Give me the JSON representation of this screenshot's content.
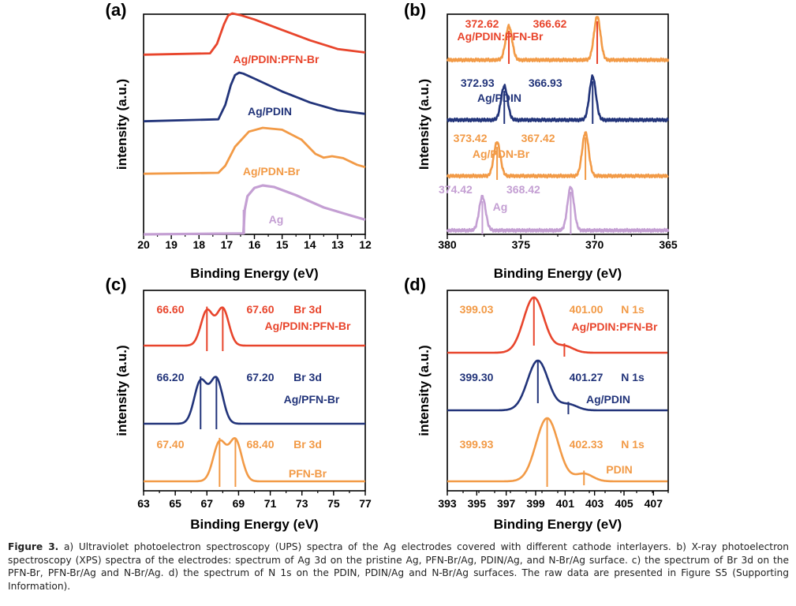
{
  "colors": {
    "red": "#e8452c",
    "navy": "#22347a",
    "orange": "#f29a46",
    "lilac": "#c49fd3",
    "axis": "#000000"
  },
  "chart_data": [
    {
      "panel": "(a)",
      "type": "line",
      "xlabel": "Binding Energy (eV)",
      "ylabel": "intensity (a.u.)",
      "xlim": [
        20,
        12
      ],
      "x_reversed": true,
      "xticks": [
        "20",
        "19",
        "18",
        "17",
        "16",
        "15",
        "14",
        "13",
        "12"
      ],
      "series": [
        {
          "name": "Ag/PDIN:PFN-Br",
          "color": "red",
          "label_pos": "center",
          "x": [
            20,
            17.6,
            17.35,
            17.1,
            16.95,
            16.8,
            16.5,
            16,
            15,
            14,
            13,
            12
          ],
          "y": [
            0.05,
            0.08,
            0.3,
            0.75,
            0.95,
            1.0,
            0.96,
            0.86,
            0.62,
            0.38,
            0.18,
            0.1
          ]
        },
        {
          "name": "Ag/PDIN",
          "color": "navy",
          "label_pos": "center",
          "x": [
            20,
            17.3,
            17.05,
            16.85,
            16.7,
            16.55,
            16.4,
            16,
            15,
            14,
            13,
            12
          ],
          "y": [
            0.02,
            0.06,
            0.35,
            0.75,
            0.95,
            1.0,
            0.98,
            0.88,
            0.62,
            0.4,
            0.24,
            0.17
          ]
        },
        {
          "name": "Ag/PDN-Br",
          "color": "orange",
          "label_pos": "center-right",
          "x": [
            20,
            17.3,
            17.05,
            16.7,
            16.2,
            15.7,
            15,
            14.3,
            13.8,
            13.5,
            13.2,
            12.8,
            12.3,
            12
          ],
          "y": [
            0.03,
            0.05,
            0.2,
            0.6,
            0.92,
            1.0,
            0.96,
            0.75,
            0.45,
            0.37,
            0.4,
            0.36,
            0.22,
            0.17
          ]
        },
        {
          "name": "Ag",
          "color": "lilac",
          "label_pos": "center",
          "x": [
            20,
            16.4,
            16.35,
            16.25,
            16,
            15.7,
            15.3,
            14.5,
            13.5,
            12.5,
            12
          ],
          "y": [
            0.0,
            0.02,
            0.5,
            0.78,
            0.95,
            1.0,
            0.97,
            0.8,
            0.55,
            0.38,
            0.3
          ]
        }
      ]
    },
    {
      "panel": "(b)",
      "type": "line",
      "xlabel": "Binding Energy (eV)",
      "ylabel": "Intensity (a.u.)",
      "xlim": [
        380,
        365
      ],
      "x_reversed": true,
      "xticks": [
        "380",
        "375",
        "370",
        "365"
      ],
      "series": [
        {
          "name": "Ag/PDIN:PFN-Br",
          "color": "orange",
          "peaks": [
            372.62,
            366.62
          ],
          "peak_labels": [
            "372.62",
            "366.62"
          ],
          "label_color": "red"
        },
        {
          "name": "Ag/PDIN",
          "color": "navy",
          "peaks": [
            372.93,
            366.93
          ],
          "peak_labels": [
            "372.93",
            "366.93"
          ],
          "label_color": "navy"
        },
        {
          "name": "Ag/PDN-Br",
          "color": "orange",
          "peaks": [
            373.42,
            367.42
          ],
          "peak_labels": [
            "373.42",
            "367.42"
          ],
          "label_color": "orange"
        },
        {
          "name": "Ag",
          "color": "lilac",
          "peaks": [
            374.42,
            368.42
          ],
          "peak_labels": [
            "374.42",
            "368.42"
          ],
          "label_color": "lilac"
        }
      ]
    },
    {
      "panel": "(c)",
      "type": "line",
      "xlabel": "Binding Energy (eV)",
      "ylabel": "intensity (a.u.)",
      "xlim": [
        63,
        77
      ],
      "x_reversed": false,
      "xticks": [
        "63",
        "65",
        "67",
        "69",
        "71",
        "73",
        "75",
        "77"
      ],
      "series": [
        {
          "name": "Ag/PDIN:PFN-Br",
          "element": "Br 3d",
          "color": "red",
          "peaks": [
            66.6,
            67.6
          ],
          "peak_labels": [
            "66.60",
            "67.60"
          ]
        },
        {
          "name": "Ag/PFN-Br",
          "element": "Br 3d",
          "color": "navy",
          "peaks": [
            66.2,
            67.2
          ],
          "peak_labels": [
            "66.20",
            "67.20"
          ]
        },
        {
          "name": "PFN-Br",
          "element": "Br 3d",
          "color": "orange",
          "peaks": [
            67.4,
            68.4
          ],
          "peak_labels": [
            "67.40",
            "68.40"
          ]
        }
      ]
    },
    {
      "panel": "(d)",
      "type": "line",
      "xlabel": "Binding Energy (eV)",
      "ylabel": "intensity (a.u.)",
      "xlim": [
        393,
        408
      ],
      "x_reversed": false,
      "xticks": [
        "393",
        "395",
        "397",
        "399",
        "401",
        "403",
        "405",
        "407"
      ],
      "series": [
        {
          "name": "Ag/PDIN:PFN-Br",
          "element": "N 1s",
          "color": "red",
          "peaks": [
            399.03,
            401.0
          ],
          "peak_labels": [
            "399.03",
            "401.00"
          ],
          "label_color": "orange"
        },
        {
          "name": "Ag/PDIN",
          "element": "N 1s",
          "color": "navy",
          "peaks": [
            399.3,
            401.27
          ],
          "peak_labels": [
            "399.30",
            "401.27"
          ],
          "label_color": "navy"
        },
        {
          "name": "PDIN",
          "element": "N 1s",
          "color": "orange",
          "peaks": [
            399.93,
            402.33
          ],
          "peak_labels": [
            "399.93",
            "402.33"
          ],
          "label_color": "orange"
        }
      ]
    }
  ],
  "caption": {
    "lead": "Figure 3.",
    "text": "a) Ultraviolet photoelectron spectroscopy (UPS) spectra of the Ag electrodes covered with different cathode interlayers. b) X-ray photoelectron spectroscopy (XPS) spectra of the electrodes: spectrum of Ag 3d on the pristine Ag, PFN-Br/Ag, PDIN/Ag, and N-Br/Ag surface. c) the spectrum of Br 3d on the PFN-Br, PFN-Br/Ag and N-Br/Ag. d) the spectrum of N 1s on the PDIN, PDIN/Ag and N-Br/Ag surfaces. The raw data are presented in Figure S5 (Supporting Information)."
  }
}
